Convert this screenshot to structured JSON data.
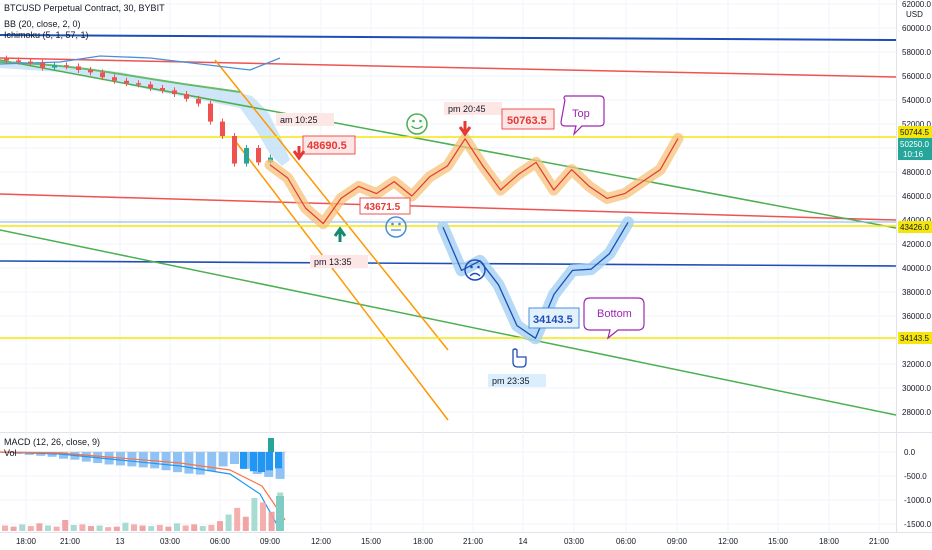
{
  "header": {
    "symbol": "BTCUSD Perpetual Contract, 30, BYBIT",
    "bb": "BB (20, close, 2, 0)",
    "ichimoku": "Ichimoku (5, 1, 57, 1)",
    "macd": "MACD (12, 26, close, 9)",
    "vol": "Vol",
    "currency": "USD"
  },
  "colors": {
    "blue_line": "#1e4db7",
    "red_line": "#ef5350",
    "green_line": "#4caf50",
    "orange_line": "#ff9800",
    "yellow_line": "#f5e50a",
    "highlight_orange": "#f5c27a",
    "highlight_blue": "#a9d3f5",
    "purple": "#9c27b0",
    "up": "#26a69a",
    "down": "#ef5350"
  },
  "chart_data": [
    {
      "type": "line",
      "title": "BTCUSD Perpetual Contract, 30, BYBIT",
      "x_ticks": [
        "18:00",
        "21:00",
        "13",
        "03:00",
        "06:00",
        "09:00",
        "12:00",
        "15:00",
        "18:00",
        "21:00",
        "14",
        "03:00",
        "06:00",
        "09:00",
        "12:00",
        "15:00",
        "18:00",
        "21:00"
      ],
      "y_ticks": [
        62000,
        60000,
        58000,
        56000,
        54000,
        52000,
        50000,
        48000,
        46000,
        44000,
        42000,
        40000,
        38000,
        36000,
        34000,
        32000,
        30000,
        28000
      ],
      "ylim": [
        27000,
        62000
      ],
      "price_labels": [
        "50744.5",
        "50250.0",
        "10:16",
        "43426.0",
        "34143.5"
      ],
      "annotations": {
        "am_time": "am 10:25",
        "pm_time_1": "pm 13:35",
        "pm_time_2": "pm 20:45",
        "pm_time_3": "pm 23:35",
        "price_1": "48690.5",
        "price_2": "43671.5",
        "price_3": "50763.5",
        "price_4": "34143.5",
        "top_label": "Top",
        "bottom_label": "Bottom"
      },
      "horizontal_levels": [
        {
          "name": "yellow_top",
          "value": 50744.5
        },
        {
          "name": "yellow_mid",
          "value": 43426.0
        },
        {
          "name": "yellow_bottom",
          "value": 34143.5
        },
        {
          "name": "blue_mid",
          "value": 40200
        }
      ],
      "candles_close": [
        57300,
        57200,
        57100,
        56700,
        56900,
        56800,
        56500,
        56300,
        55900,
        55600,
        55400,
        55300,
        55000,
        54800,
        54500,
        54100,
        53700,
        52200,
        51000,
        48700,
        50000,
        48800,
        49200
      ],
      "projection_orange": [
        48600,
        47500,
        45000,
        43700,
        45800,
        46800,
        46200,
        47200,
        46000,
        47600,
        48500,
        50763.5,
        48500,
        46500,
        47800,
        48800,
        46500,
        48200,
        46800,
        45800,
        46200,
        47200,
        48200,
        50800
      ],
      "projection_blue": [
        43400,
        39800,
        40600,
        38600,
        35200,
        34143.5,
        37800,
        39800,
        39900,
        41200,
        43800
      ]
    },
    {
      "type": "bar",
      "title": "MACD (12, 26, close, 9)",
      "y_ticks": [
        0,
        -500,
        -1000,
        -1500
      ],
      "ylim": [
        -1700,
        300
      ],
      "histogram": [
        -20,
        -40,
        -60,
        -80,
        -100,
        -140,
        -160,
        -200,
        -230,
        -260,
        -280,
        -300,
        -320,
        -340,
        -380,
        -420,
        -450,
        -470,
        -400,
        -300,
        -250,
        -350,
        -460,
        -520,
        -560
      ],
      "volume": [
        10,
        8,
        12,
        9,
        14,
        10,
        8,
        20,
        11,
        12,
        9,
        10,
        7,
        8,
        15,
        12,
        10,
        9,
        11,
        8,
        14,
        10,
        12,
        9,
        11,
        18,
        30,
        42,
        26,
        60,
        52,
        35,
        70
      ]
    }
  ]
}
